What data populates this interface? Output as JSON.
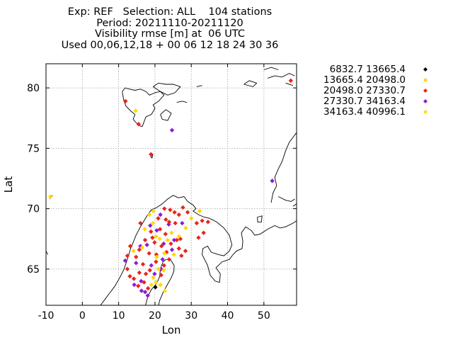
{
  "title_lines": [
    "Exp: REF   Selection: ALL    104 stations",
    "Period: 20211110-20211120",
    "Visibility rmse [m] at  06 UTC",
    "Used 00,06,12,18 + 00 06 12 18 24 30 36"
  ],
  "chart_data": {
    "type": "scatter",
    "xlabel": "Lon",
    "ylabel": "Lat",
    "xlim": [
      -10,
      59
    ],
    "ylim": [
      62,
      82
    ],
    "xticks": [
      -10,
      0,
      10,
      20,
      30,
      40,
      50
    ],
    "yticks": [
      65,
      70,
      75,
      80
    ],
    "grid": true,
    "legend_position": "outside-right",
    "series": [
      {
        "name": "6832.7 13665.4",
        "color": "#000000",
        "points": [
          [
            20.1,
            63.5
          ]
        ]
      },
      {
        "name": "13665.4 20498.0",
        "color": "#ffd700",
        "points": [
          [
            -8.8,
            71.0
          ],
          [
            14.7,
            78.1
          ],
          [
            18.5,
            69.5
          ],
          [
            19.5,
            69.8
          ],
          [
            17.2,
            68.3
          ],
          [
            20.3,
            67.7
          ],
          [
            24.6,
            68.0
          ],
          [
            28.5,
            68.4
          ],
          [
            30.0,
            69.2
          ],
          [
            32.3,
            69.8
          ],
          [
            23.5,
            67.4
          ],
          [
            20.5,
            66.0
          ],
          [
            22.6,
            66.3
          ],
          [
            21.0,
            65.0
          ],
          [
            19.5,
            64.3
          ],
          [
            21.5,
            63.7
          ],
          [
            22.4,
            64.9
          ],
          [
            25.2,
            66.2
          ],
          [
            14.1,
            66.5
          ],
          [
            16.5,
            66.8
          ],
          [
            26.6,
            67.7
          ],
          [
            20.3,
            63.9
          ]
        ]
      },
      {
        "name": "20498.0 27330.7",
        "color": "#e8261a",
        "points": [
          [
            11.9,
            78.9
          ],
          [
            15.5,
            77.0
          ],
          [
            18.9,
            74.5
          ],
          [
            57.4,
            80.6
          ],
          [
            27.7,
            70.1
          ],
          [
            22.6,
            70.0
          ],
          [
            24.2,
            69.9
          ],
          [
            25.4,
            69.7
          ],
          [
            26.6,
            69.5
          ],
          [
            29.0,
            69.7
          ],
          [
            31.5,
            68.8
          ],
          [
            33.0,
            69.0
          ],
          [
            34.6,
            68.9
          ],
          [
            33.4,
            68.0
          ],
          [
            32.0,
            67.6
          ],
          [
            20.9,
            69.2
          ],
          [
            23.0,
            69.1
          ],
          [
            16.0,
            68.8
          ],
          [
            21.4,
            68.3
          ],
          [
            25.6,
            68.8
          ],
          [
            18.9,
            68.1
          ],
          [
            22.9,
            67.9
          ],
          [
            27.0,
            67.5
          ],
          [
            17.3,
            67.4
          ],
          [
            19.9,
            67.2
          ],
          [
            24.4,
            67.1
          ],
          [
            13.2,
            66.9
          ],
          [
            15.7,
            66.6
          ],
          [
            21.8,
            66.9
          ],
          [
            26.6,
            66.7
          ],
          [
            18.4,
            66.3
          ],
          [
            23.2,
            66.4
          ],
          [
            28.4,
            66.5
          ],
          [
            12.4,
            66.1
          ],
          [
            14.8,
            66.0
          ],
          [
            20.4,
            66.2
          ],
          [
            27.3,
            66.1
          ],
          [
            16.7,
            65.4
          ],
          [
            20.3,
            65.6
          ],
          [
            23.9,
            65.8
          ],
          [
            12.4,
            65.0
          ],
          [
            15.7,
            64.7
          ],
          [
            18.6,
            64.9
          ],
          [
            22.5,
            65.3
          ],
          [
            14.2,
            64.2
          ],
          [
            17.0,
            63.9
          ],
          [
            15.4,
            63.6
          ],
          [
            18.1,
            63.4
          ],
          [
            21.7,
            64.5
          ],
          [
            13.1,
            64.4
          ],
          [
            17.5,
            64.6
          ],
          [
            26.0,
            67.4
          ],
          [
            19.3,
            67.6
          ],
          [
            23.9,
            68.9
          ]
        ]
      },
      {
        "name": "27330.7 34163.4",
        "color": "#8a1cd8",
        "points": [
          [
            24.7,
            76.5
          ],
          [
            52.3,
            72.3
          ],
          [
            11.8,
            65.7
          ],
          [
            17.8,
            67.0
          ],
          [
            21.5,
            69.5
          ],
          [
            23.8,
            68.7
          ],
          [
            27.5,
            68.8
          ],
          [
            25.3,
            67.4
          ],
          [
            22.4,
            67.1
          ],
          [
            14.8,
            65.5
          ],
          [
            19.0,
            65.3
          ],
          [
            21.7,
            65.0
          ],
          [
            16.2,
            64.0
          ],
          [
            19.9,
            64.6
          ],
          [
            17.3,
            63.1
          ],
          [
            14.3,
            63.7
          ],
          [
            22.1,
            65.8
          ],
          [
            16.0,
            66.9
          ],
          [
            18.7,
            68.6
          ],
          [
            20.5,
            68.2
          ],
          [
            24.7,
            66.6
          ],
          [
            16.3,
            63.2
          ],
          [
            18.0,
            62.8
          ]
        ]
      },
      {
        "name": "34163.4 40996.1",
        "color": "#ffdd00",
        "points": [
          [
            19.0,
            63.7
          ],
          [
            19.4,
            68.8
          ],
          [
            21.3,
            67.5
          ],
          [
            22.7,
            63.2
          ]
        ]
      }
    ]
  }
}
